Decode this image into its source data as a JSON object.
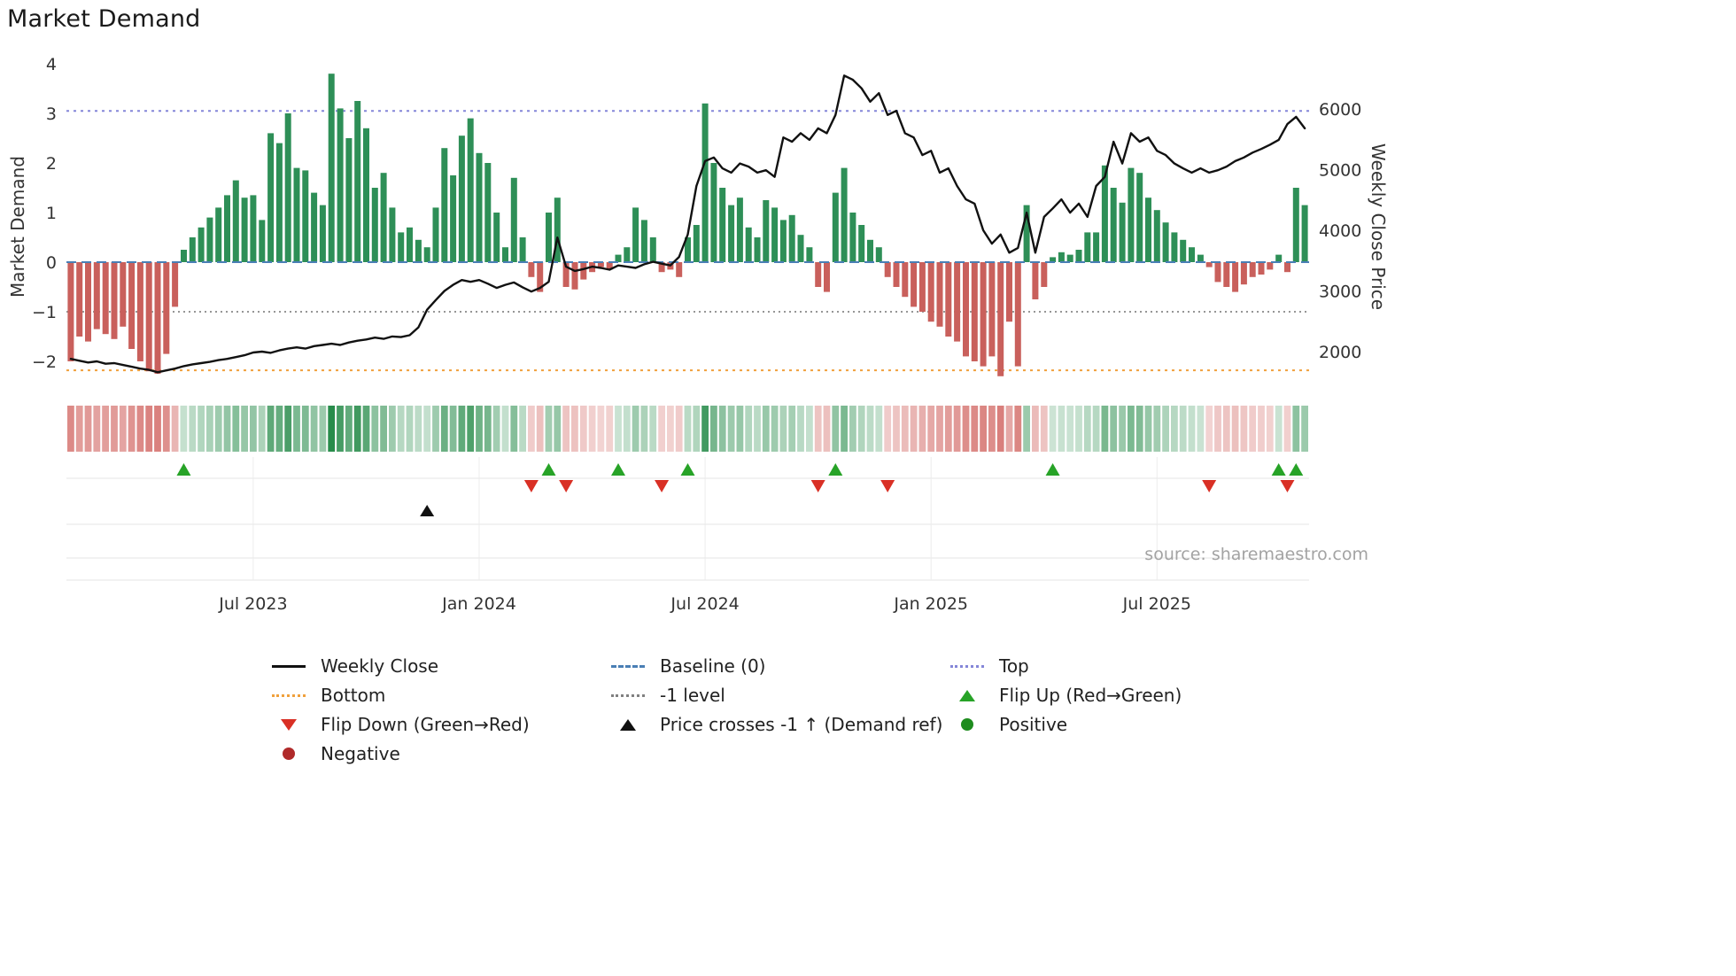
{
  "title": "Market Demand",
  "source": "source: sharemaestro.com",
  "axes": {
    "left": {
      "label": "Market Demand",
      "tick_values": [
        4,
        3,
        2,
        1,
        0,
        -1,
        -2
      ],
      "tick_labels": [
        "4",
        "3",
        "2",
        "1",
        "0",
        "−1",
        "−2"
      ]
    },
    "right": {
      "label": "Weekly Close Price",
      "tick_values": [
        6000,
        5000,
        4000,
        3000,
        2000
      ],
      "tick_labels": [
        "6000",
        "5000",
        "4000",
        "3000",
        "2000"
      ]
    },
    "x": {
      "tick_weeks": [
        22,
        48,
        74,
        100,
        126
      ],
      "tick_labels": [
        "Jul 2023",
        "Jan 2024",
        "Jul 2024",
        "Jan 2025",
        "Jul 2025"
      ]
    }
  },
  "colors": {
    "bar_positive": "#2e8f57",
    "bar_negative": "#c9605c",
    "heat_positive_rgb": "40,140,75",
    "heat_negative_rgb": "200,70,65",
    "price_line": "#111111",
    "baseline": "#4a7fb5",
    "top_line": "#8486d8",
    "bottom_line": "#f0a03c",
    "minus_one_line": "#888888",
    "flip_up": "#27a327",
    "flip_down": "#d93025",
    "price_cross": "#111111",
    "positive_dot": "#1e8c1e",
    "negative_dot": "#b02a2a"
  },
  "chart_data": {
    "type": "bar+line",
    "weeks": 143,
    "demand_axis_range": [
      -2.75,
      4.2
    ],
    "price_axis_range": [
      1230,
      6880
    ],
    "reference_lines": {
      "baseline": 0,
      "top": 3.05,
      "bottom": -2.18,
      "minus_one_level": -1
    },
    "series": [
      {
        "name": "Market Demand",
        "type": "bar",
        "values": [
          -2.0,
          -1.5,
          -1.6,
          -1.35,
          -1.45,
          -1.55,
          -1.3,
          -1.75,
          -2.0,
          -2.2,
          -2.25,
          -1.85,
          -0.9,
          0.25,
          0.5,
          0.7,
          0.9,
          1.1,
          1.35,
          1.65,
          1.3,
          1.35,
          0.85,
          2.6,
          2.4,
          3.0,
          1.9,
          1.85,
          1.4,
          1.15,
          3.8,
          3.1,
          2.5,
          3.25,
          2.7,
          1.5,
          1.8,
          1.1,
          0.6,
          0.7,
          0.45,
          0.3,
          1.1,
          2.3,
          1.75,
          2.55,
          2.9,
          2.2,
          2.0,
          1.0,
          0.3,
          1.7,
          0.5,
          -0.3,
          -0.6,
          1.0,
          1.3,
          -0.5,
          -0.55,
          -0.35,
          -0.2,
          -0.1,
          -0.15,
          0.15,
          0.3,
          1.1,
          0.85,
          0.5,
          -0.2,
          -0.15,
          -0.3,
          0.5,
          0.75,
          3.2,
          2.0,
          1.5,
          1.15,
          1.3,
          0.7,
          0.5,
          1.25,
          1.1,
          0.85,
          0.95,
          0.55,
          0.3,
          -0.5,
          -0.6,
          1.4,
          1.9,
          1.0,
          0.75,
          0.45,
          0.3,
          -0.3,
          -0.5,
          -0.7,
          -0.9,
          -1.0,
          -1.2,
          -1.3,
          -1.5,
          -1.6,
          -1.9,
          -2.0,
          -2.1,
          -1.9,
          -2.3,
          -1.2,
          -2.1,
          1.15,
          -0.75,
          -0.5,
          0.1,
          0.2,
          0.15,
          0.25,
          0.6,
          0.6,
          1.95,
          1.5,
          1.2,
          1.9,
          1.8,
          1.3,
          1.05,
          0.8,
          0.6,
          0.45,
          0.3,
          0.15,
          -0.1,
          -0.4,
          -0.5,
          -0.6,
          -0.45,
          -0.3,
          -0.25,
          -0.15,
          0.15,
          -0.2,
          1.5,
          1.15
        ]
      },
      {
        "name": "Weekly Close",
        "type": "line",
        "values": [
          1880,
          1850,
          1820,
          1840,
          1800,
          1810,
          1780,
          1750,
          1720,
          1700,
          1660,
          1690,
          1720,
          1760,
          1790,
          1810,
          1830,
          1860,
          1880,
          1910,
          1940,
          1985,
          2000,
          1980,
          2020,
          2050,
          2070,
          2050,
          2090,
          2110,
          2130,
          2110,
          2150,
          2180,
          2200,
          2230,
          2210,
          2250,
          2240,
          2270,
          2400,
          2690,
          2850,
          3000,
          3100,
          3180,
          3150,
          3180,
          3120,
          3050,
          3100,
          3140,
          3060,
          2990,
          3050,
          3150,
          3880,
          3400,
          3330,
          3360,
          3400,
          3380,
          3350,
          3420,
          3400,
          3380,
          3440,
          3480,
          3450,
          3420,
          3560,
          3930,
          4730,
          5140,
          5200,
          5020,
          4950,
          5100,
          5050,
          4950,
          4990,
          4880,
          5530,
          5460,
          5600,
          5490,
          5680,
          5600,
          5900,
          6550,
          6480,
          6340,
          6120,
          6260,
          5900,
          5970,
          5600,
          5530,
          5240,
          5310,
          4950,
          5020,
          4730,
          4510,
          4440,
          4000,
          3780,
          3930,
          3630,
          3710,
          4290,
          3630,
          4220,
          4360,
          4510,
          4290,
          4440,
          4220,
          4730,
          4880,
          5460,
          5100,
          5600,
          5460,
          5530,
          5310,
          5240,
          5100,
          5020,
          4950,
          5020,
          4950,
          4990,
          5050,
          5140,
          5200,
          5280,
          5340,
          5410,
          5490,
          5750,
          5870,
          5680
        ]
      }
    ],
    "markers": {
      "flip_up_weeks": [
        14,
        56,
        64,
        72,
        89,
        114,
        140,
        142
      ],
      "flip_down_weeks": [
        54,
        58,
        69,
        87,
        95,
        132,
        141
      ],
      "price_cross_minus1_weeks": [
        42
      ]
    }
  },
  "legend": {
    "items": [
      {
        "icon": "line-black",
        "label": "Weekly Close"
      },
      {
        "icon": "dash-blue",
        "label": "Baseline (0)"
      },
      {
        "icon": "dot-purple",
        "label": "Top"
      },
      {
        "icon": "dot-orange",
        "label": "Bottom"
      },
      {
        "icon": "dot-gray",
        "label": "-1 level"
      },
      {
        "icon": "tri-up-green",
        "label": "Flip Up (Red→Green)"
      },
      {
        "icon": "tri-down-red",
        "label": "Flip Down (Green→Red)"
      },
      {
        "icon": "tri-up-black",
        "label": "Price crosses -1 ↑ (Demand ref)"
      },
      {
        "icon": "circle-green",
        "label": "Positive"
      },
      {
        "icon": "circle-red",
        "label": "Negative"
      }
    ]
  }
}
